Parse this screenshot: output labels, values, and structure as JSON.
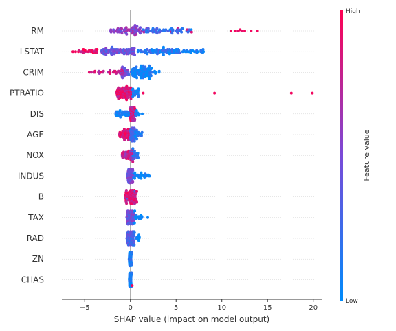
{
  "chart_data": {
    "type": "scatter",
    "subtype": "shap-beeswarm",
    "title": "",
    "xlabel": "SHAP value (impact on model output)",
    "xlim": [
      -7.5,
      21.0
    ],
    "xticks": [
      -5,
      0,
      5,
      10,
      15,
      20
    ],
    "xtick_labels": [
      "−5",
      "0",
      "5",
      "10",
      "15",
      "20"
    ],
    "grid": false,
    "zero_line": true,
    "colorbar": {
      "title": "Feature value",
      "high_label": "High",
      "low_label": "Low",
      "low_color": "#008bfb",
      "high_color": "#ff0052"
    },
    "features": [
      {
        "name": "RM",
        "clusters": [
          [
            -2.2,
            1.8,
            70,
            0.55
          ],
          [
            1.2,
            6.8,
            55,
            0.2
          ]
        ],
        "points": [
          [
            11.0,
            0.95
          ],
          [
            11.5,
            0.95
          ],
          [
            12.0,
            0.95
          ],
          [
            12.5,
            0.95
          ],
          [
            13.2,
            0.95
          ],
          [
            13.9,
            0.95
          ],
          [
            12.2,
            0.9
          ],
          [
            11.8,
            0.9
          ],
          [
            4.5,
            0.85
          ],
          [
            5.2,
            0.8
          ],
          [
            6.2,
            0.8
          ],
          [
            6.7,
            0.85
          ]
        ]
      },
      {
        "name": "LSTAT",
        "clusters": [
          [
            -5.8,
            -3.2,
            25,
            0.9
          ],
          [
            -3.2,
            0.5,
            80,
            0.45
          ],
          [
            0.8,
            5.5,
            70,
            0.15
          ],
          [
            5.5,
            8.0,
            20,
            0.05
          ]
        ],
        "points": [
          [
            -6.3,
            0.95
          ],
          [
            -6.0,
            0.95
          ],
          [
            8.0,
            0.03
          ],
          [
            7.7,
            0.05
          ]
        ]
      },
      {
        "name": "CRIM",
        "clusters": [
          [
            -4.3,
            -0.5,
            35,
            0.8
          ],
          [
            -1.0,
            0.2,
            20,
            0.45
          ],
          [
            0.2,
            2.2,
            90,
            0.05
          ],
          [
            2.2,
            3.2,
            10,
            0.03
          ]
        ],
        "points": [
          [
            -4.5,
            0.9
          ]
        ]
      },
      {
        "name": "PTRATIO",
        "clusters": [
          [
            -1.5,
            0.2,
            80,
            0.85
          ],
          [
            0.2,
            0.9,
            20,
            0.1
          ]
        ],
        "points": [
          [
            1.4,
            0.95
          ],
          [
            9.2,
            0.95
          ],
          [
            17.6,
            0.95
          ],
          [
            19.9,
            0.95
          ]
        ]
      },
      {
        "name": "DIS",
        "clusters": [
          [
            -1.6,
            0.0,
            40,
            0.05
          ],
          [
            0.0,
            0.5,
            50,
            0.8
          ],
          [
            0.5,
            1.0,
            10,
            0.1
          ]
        ],
        "points": [
          [
            1.3,
            0.05
          ]
        ]
      },
      {
        "name": "AGE",
        "clusters": [
          [
            -1.2,
            0.0,
            45,
            0.85
          ],
          [
            0.0,
            0.5,
            45,
            0.3
          ],
          [
            0.5,
            1.3,
            20,
            0.1
          ]
        ],
        "points": []
      },
      {
        "name": "NOX",
        "clusters": [
          [
            -0.9,
            0.3,
            45,
            0.75
          ],
          [
            0.2,
            0.9,
            20,
            0.2
          ]
        ],
        "points": [
          [
            -0.1,
            0.8
          ],
          [
            0.1,
            0.7
          ]
        ]
      },
      {
        "name": "INDUS",
        "clusters": [
          [
            -0.3,
            0.3,
            70,
            0.45
          ],
          [
            0.3,
            2.0,
            25,
            0.05
          ]
        ],
        "points": [
          [
            2.1,
            0.05
          ]
        ]
      },
      {
        "name": "B",
        "clusters": [
          [
            -0.6,
            0.7,
            80,
            0.85
          ]
        ],
        "points": [
          [
            -0.3,
            0.2
          ],
          [
            0.5,
            0.3
          ]
        ]
      },
      {
        "name": "TAX",
        "clusters": [
          [
            -0.4,
            0.4,
            70,
            0.45
          ],
          [
            0.4,
            1.3,
            15,
            0.05
          ]
        ],
        "points": [
          [
            1.9,
            0.05
          ]
        ]
      },
      {
        "name": "RAD",
        "clusters": [
          [
            -0.4,
            0.4,
            70,
            0.3
          ],
          [
            0.4,
            1.0,
            12,
            0.05
          ]
        ],
        "points": [
          [
            -0.2,
            0.9
          ]
        ]
      },
      {
        "name": "ZN",
        "clusters": [
          [
            -0.15,
            0.15,
            70,
            0.05
          ]
        ],
        "points": []
      },
      {
        "name": "CHAS",
        "clusters": [
          [
            -0.12,
            0.12,
            60,
            0.05
          ]
        ],
        "points": [
          [
            0.2,
            0.95
          ]
        ]
      }
    ]
  }
}
